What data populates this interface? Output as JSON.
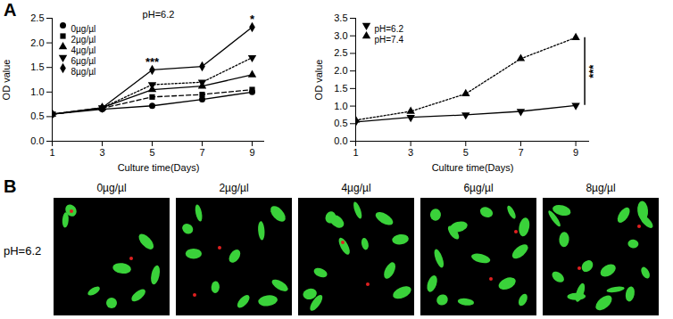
{
  "chart_data": [
    {
      "type": "line",
      "title": "pH=6.2",
      "x_label": "Culture time(Days)",
      "y_label": "OD value",
      "x": [
        1,
        3,
        5,
        7,
        9
      ],
      "series": [
        {
          "name": "0µg/µl",
          "color": "#000000",
          "marker": "circle",
          "line_style": "solid",
          "values": [
            0.55,
            0.65,
            0.72,
            0.85,
            1.0
          ]
        },
        {
          "name": "2µg/µl",
          "color": "#000000",
          "marker": "square",
          "line_style": "dashed",
          "values": [
            0.55,
            0.67,
            0.9,
            0.95,
            1.05
          ]
        },
        {
          "name": "4µg/µl",
          "color": "#000000",
          "marker": "triangle",
          "line_style": "solid",
          "values": [
            0.55,
            0.68,
            1.05,
            1.12,
            1.35
          ]
        },
        {
          "name": "6µg/µl",
          "color": "#000000",
          "marker": "triangle-down",
          "line_style": "dotted",
          "values": [
            0.55,
            0.68,
            1.15,
            1.2,
            1.7
          ]
        },
        {
          "name": "8µg/µl",
          "color": "#000000",
          "marker": "diamond",
          "line_style": "solid",
          "values": [
            0.55,
            0.68,
            1.45,
            1.52,
            2.32
          ]
        }
      ],
      "xlim": [
        1,
        9.5
      ],
      "xticks": [
        1,
        3,
        5,
        7,
        9
      ],
      "ylim": [
        0,
        2.5
      ],
      "yticks": [
        {
          "value": 0,
          "label": "0.0"
        },
        0.5,
        {
          "value": 1,
          "label": "1.0"
        },
        1.5,
        {
          "value": 2,
          "label": "2.0"
        },
        2.5
      ],
      "grid": false,
      "legend": "top-left",
      "annotations": [
        {
          "x": 5,
          "text": "***"
        },
        {
          "x": 9,
          "text": "*"
        }
      ]
    },
    {
      "type": "line",
      "x_label": "Culture time(Days)",
      "y_label": "OD value",
      "x": [
        1,
        3,
        5,
        7,
        9
      ],
      "series": [
        {
          "name": "pH=6.2",
          "color": "#000000",
          "marker": "triangle-down",
          "line_style": "solid",
          "values": [
            0.55,
            0.68,
            0.75,
            0.85,
            1.02
          ]
        },
        {
          "name": "pH=7.4",
          "color": "#000000",
          "marker": "triangle",
          "line_style": "dotted",
          "values": [
            0.6,
            0.85,
            1.35,
            2.35,
            2.95
          ]
        }
      ],
      "xlim": [
        1,
        9.5
      ],
      "xticks": [
        1,
        3,
        5,
        7,
        9
      ],
      "ylim": [
        0,
        3.5
      ],
      "yticks": [
        {
          "value": 0,
          "label": "0.0"
        },
        0.5,
        {
          "value": 1,
          "label": "1.0"
        },
        1.5,
        {
          "value": 2,
          "label": "2.0"
        },
        2.5,
        {
          "value": 3,
          "label": "3.0"
        },
        3.5
      ],
      "grid": false,
      "legend": "top-left",
      "annotations": [
        {
          "x": 9,
          "text": "***",
          "between": [
            "pH=6.2",
            "pH=7.4"
          ]
        }
      ]
    }
  ],
  "panel_labels": [
    "A",
    "B"
  ],
  "images": {
    "row_label": "pH=6.2",
    "columns": [
      "0µg/µl",
      "2µg/µl",
      "4µg/µl",
      "6µg/µl",
      "8µg/µl"
    ]
  }
}
